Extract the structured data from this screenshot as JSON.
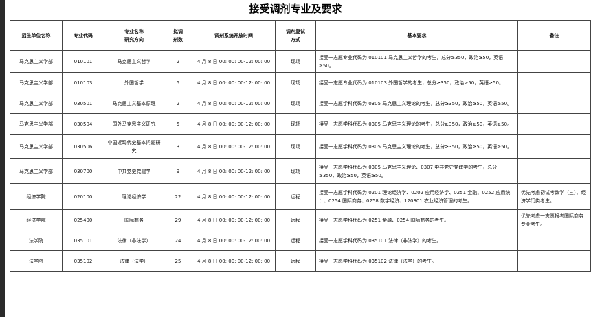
{
  "title": "接受调剂专业及要求",
  "headers": [
    "招生单位名称",
    "专业代码",
    "专业名称\n研究方向",
    "拟调\n剂数",
    "调剂系统开放时间",
    "调剂复试\n方式",
    "基本要求",
    "备注"
  ],
  "rows": [
    {
      "unit": "马克思主义学部",
      "code": "010101",
      "name": "马克思主义哲学",
      "count": "2",
      "time": "4 月 8 日 00: 00: 00-12: 00: 00",
      "mode": "现场",
      "req": "接受一志愿专业代码为 010101 马克思主义哲学的考生，总分≥350，政治≥50，英语≥50。",
      "note": ""
    },
    {
      "unit": "马克思主义学部",
      "code": "010103",
      "name": "外国哲学",
      "count": "5",
      "time": "4 月 8 日 00: 00: 00-12: 00: 00",
      "mode": "现场",
      "req": "接受一志愿专业代码为 010103 外国哲学的考生，总分≥350，政治≥50，英语≥50。",
      "note": ""
    },
    {
      "unit": "马克思主义学部",
      "code": "030501",
      "name": "马克思主义基本原理",
      "count": "2",
      "time": "4 月 8 日 00: 00: 00-12: 00: 00",
      "mode": "现场",
      "req": "接受一志愿学科代码为 0305 马克思主义理论的考生，总分≥350，政治≥50，英语≥50。",
      "note": ""
    },
    {
      "unit": "马克思主义学部",
      "code": "030504",
      "name": "国外马克思主义研究",
      "count": "5",
      "time": "4 月 8 日 00: 00: 00-12: 00: 00",
      "mode": "现场",
      "req": "接受一志愿学科代码为 0305 马克思主义理论的考生，总分≥350，政治≥50，英语≥50。",
      "note": ""
    },
    {
      "unit": "马克思主义学部",
      "code": "030506",
      "name": "中国近现代史基本问题研究",
      "count": "3",
      "time": "4 月 8 日 00: 00: 00-12: 00: 00",
      "mode": "现场",
      "req": "接受一志愿学科代码为 0305 马克思主义理论的考生，总分≥350，政治≥50，英语≥50。",
      "note": ""
    },
    {
      "unit": "马克思主义学部",
      "code": "030700",
      "name": "中共党史党建学",
      "count": "9",
      "time": "4 月 8 日 00: 00: 00-12: 00: 00",
      "mode": "现场",
      "req": "接受一志愿学科代码为 0305 马克思主义理论、0307 中共党史党建学的考生，总分≥350，政治≥50，英语≥50。",
      "note": ""
    },
    {
      "unit": "经济学院",
      "code": "020100",
      "name": "理论经济学",
      "count": "22",
      "time": "4 月 8 日 00: 00: 00-12: 00: 00",
      "mode": "远程",
      "req": "接受一志愿学科代码为 0201 理论经济学、0202 应用经济学、0251 金融、0252 应用统计、0254 国际商务、0258 数字经济、120301 农业经济管理的考生。",
      "note": "优先考虑初试考数学（三）、经济学门类考生。"
    },
    {
      "unit": "经济学院",
      "code": "025400",
      "name": "国际商务",
      "count": "29",
      "time": "4 月 8 日 00: 00: 00-12: 00: 00",
      "mode": "远程",
      "req": "接受一志愿学科代码为 0251 金融、0254 国际商务的考生。",
      "note": "优先考虑一志愿报考国际商务专业考生。"
    },
    {
      "unit": "法学院",
      "code": "035101",
      "name": "法律（非法学）",
      "count": "24",
      "time": "4 月 8 日 00: 00: 00-12: 00: 00",
      "mode": "远程",
      "req": "接受一志愿学科代码为 035101 法律（非法学）的考生。",
      "note": ""
    },
    {
      "unit": "法学院",
      "code": "035102",
      "name": "法律（法学）",
      "count": "25",
      "time": "4 月 8 日 00: 00: 00-12: 00: 00",
      "mode": "远程",
      "req": "接受一志愿学科代码为 035102 法律（法学）的考生。",
      "note": ""
    }
  ]
}
